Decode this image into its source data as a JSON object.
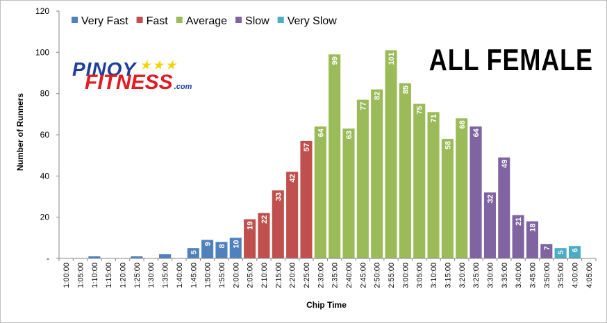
{
  "chart_data": {
    "type": "bar",
    "title": "ALL FEMALE",
    "xlabel": "Chip Time",
    "ylabel": "Number of Runners",
    "ylim": [
      0,
      120
    ],
    "yticks": [
      "-",
      "20",
      "40",
      "60",
      "80",
      "100",
      "120"
    ],
    "grid": false,
    "legend_position": "top-left",
    "categories": [
      "1:00:00",
      "1:05:00",
      "1:10:00",
      "1:15:00",
      "1:20:00",
      "1:25:00",
      "1:30:00",
      "1:35:00",
      "1:40:00",
      "1:45:00",
      "1:50:00",
      "1:55:00",
      "2:00:00",
      "2:05:00",
      "2:10:00",
      "2:15:00",
      "2:20:00",
      "2:25:00",
      "2:30:00",
      "2:35:00",
      "2:40:00",
      "2:45:00",
      "2:50:00",
      "2:55:00",
      "3:00:00",
      "3:05:00",
      "3:10:00",
      "3:15:00",
      "3:20:00",
      "3:25:00",
      "3:30:00",
      "3:35:00",
      "3:40:00",
      "3:45:00",
      "3:50:00",
      "3:55:00",
      "4:00:00",
      "4:05:00"
    ],
    "values": [
      0,
      0,
      1,
      0,
      0,
      1,
      0,
      2,
      0,
      5,
      9,
      8,
      10,
      19,
      22,
      33,
      42,
      57,
      64,
      99,
      63,
      77,
      82,
      101,
      85,
      75,
      71,
      58,
      68,
      64,
      32,
      49,
      21,
      18,
      7,
      5,
      6,
      0
    ],
    "data_labels": [
      "",
      "",
      "",
      "",
      "",
      "",
      "",
      "",
      "",
      "5",
      "9",
      "8",
      "10",
      "19",
      "22",
      "33",
      "42",
      "57",
      "64",
      "99",
      "63",
      "77",
      "82",
      "101",
      "85",
      "75",
      "71",
      "58",
      "68",
      "64",
      "32",
      "49",
      "21",
      "18",
      "7",
      "5",
      "6",
      ""
    ],
    "groups": [
      0,
      0,
      0,
      0,
      0,
      0,
      0,
      0,
      0,
      0,
      0,
      0,
      0,
      1,
      1,
      1,
      1,
      1,
      2,
      2,
      2,
      2,
      2,
      2,
      2,
      2,
      2,
      2,
      2,
      3,
      3,
      3,
      3,
      3,
      3,
      4,
      4,
      4
    ],
    "series": [
      {
        "name": "Very Fast",
        "color": "#4f81bd"
      },
      {
        "name": "Fast",
        "color": "#c0504d"
      },
      {
        "name": "Average",
        "color": "#9bbb59"
      },
      {
        "name": "Slow",
        "color": "#8064a2"
      },
      {
        "name": "Very Slow",
        "color": "#4bacc6"
      }
    ]
  },
  "logo": {
    "line1": "PINOY",
    "stars": "★★★",
    "line2": "FITNESS",
    "dotcom": ".com"
  }
}
